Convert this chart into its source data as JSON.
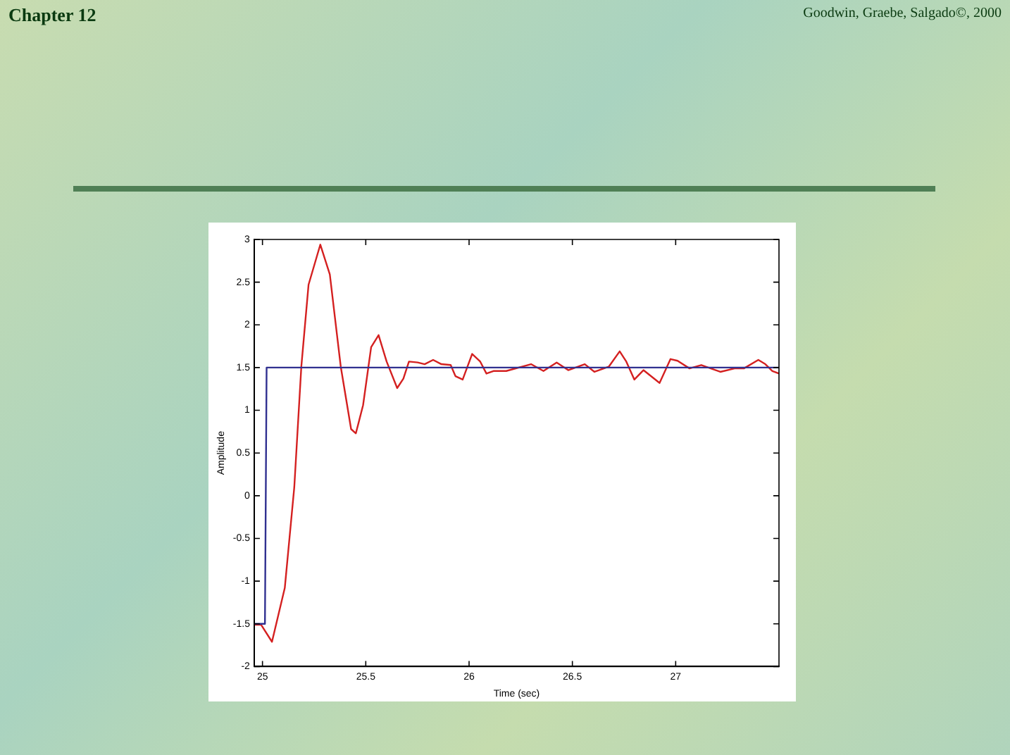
{
  "chart_data": {
    "type": "line",
    "xlabel": "Time (sec)",
    "ylabel": "Amplitude",
    "annotations": [
      "Chapter 12",
      "Goodwin, Graebe, Salgado©, 2000"
    ],
    "xlim": [
      24.96,
      27.5
    ],
    "xticks": [
      25,
      25.5,
      26,
      26.5,
      27
    ],
    "ylim": [
      -2,
      3
    ],
    "yticks": [
      -2,
      -1.5,
      -1,
      -0.5,
      0,
      0.5,
      1,
      1.5,
      2,
      2.5,
      3
    ],
    "grid": false,
    "legend": false,
    "marker": "none",
    "line_style": "solid",
    "series": [
      {
        "color": "#303090",
        "x": [
          24.96,
          25.012,
          25.02,
          27.5
        ],
        "values": [
          -1.5,
          -1.5,
          1.5,
          1.5
        ]
      },
      {
        "color": "#d42020",
        "x": [
          24.963,
          24.993,
          25.046,
          25.108,
          25.154,
          25.188,
          25.223,
          25.28,
          25.326,
          25.379,
          25.429,
          25.452,
          25.487,
          25.526,
          25.562,
          25.601,
          25.652,
          25.682,
          25.709,
          25.751,
          25.785,
          25.826,
          25.866,
          25.911,
          25.934,
          25.969,
          26.015,
          26.054,
          26.084,
          26.118,
          26.18,
          26.3,
          26.36,
          26.424,
          26.48,
          26.56,
          26.607,
          26.676,
          26.729,
          26.761,
          26.8,
          26.844,
          26.922,
          26.975,
          27.009,
          27.067,
          27.124,
          27.216,
          27.285,
          27.33,
          27.4,
          27.434,
          27.468,
          27.5
        ],
        "values": [
          -1.51,
          -1.51,
          -1.71,
          -1.08,
          0.1,
          1.51,
          2.47,
          2.94,
          2.59,
          1.51,
          0.78,
          0.73,
          1.06,
          1.74,
          1.88,
          1.57,
          1.26,
          1.37,
          1.57,
          1.56,
          1.54,
          1.59,
          1.54,
          1.53,
          1.4,
          1.36,
          1.66,
          1.57,
          1.43,
          1.46,
          1.46,
          1.54,
          1.46,
          1.56,
          1.47,
          1.54,
          1.45,
          1.51,
          1.69,
          1.57,
          1.36,
          1.47,
          1.32,
          1.6,
          1.58,
          1.49,
          1.53,
          1.45,
          1.49,
          1.49,
          1.59,
          1.54,
          1.46,
          1.43
        ]
      }
    ]
  }
}
